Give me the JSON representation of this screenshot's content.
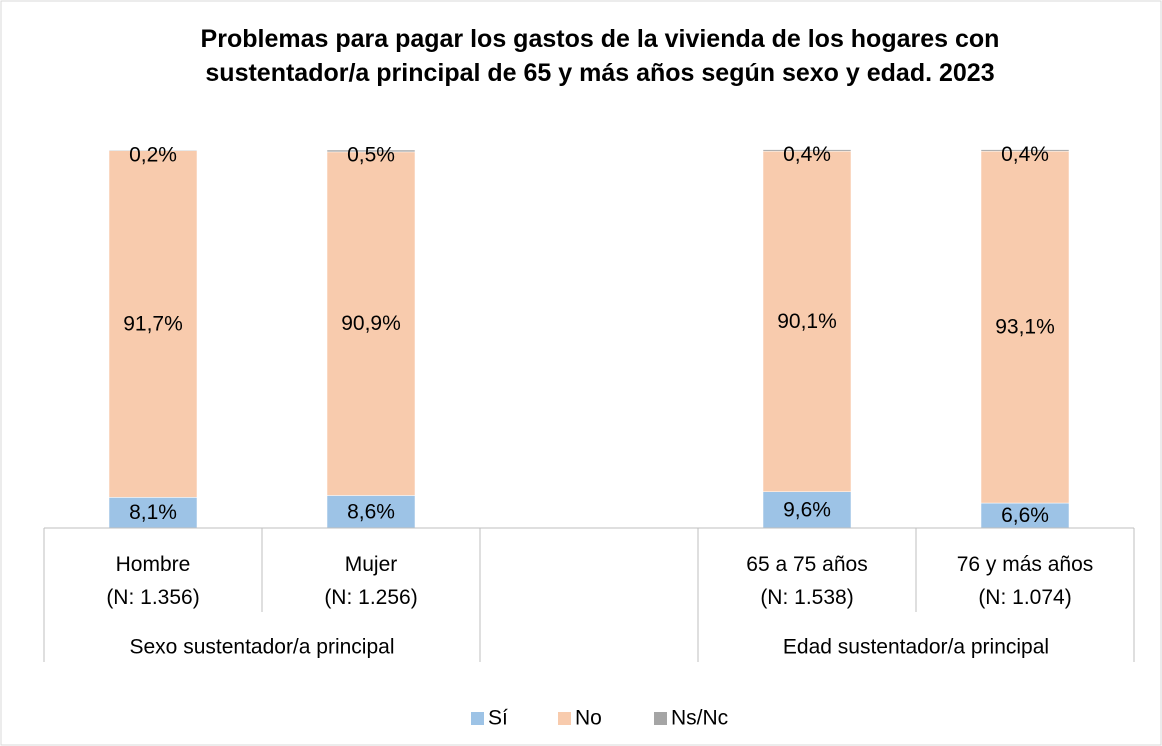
{
  "chart_data": {
    "type": "stacked_bar",
    "title": "Problemas para pagar los gastos de la vivienda de los hogares con sustentador/a principal de 65 y más años según sexo y edad. 2023",
    "categories": [
      "Hombre\n(N: 1.356)",
      "Mujer\n(N: 1.256)",
      null,
      "65 a 75 años\n(N: 1.538)",
      "76 y más años\n(N: 1.074)"
    ],
    "groups": [
      "Sexo sustentador/a principal",
      "Edad sustentador/a principal"
    ],
    "ylim": [
      0,
      100
    ],
    "series": [
      {
        "name": "Sí",
        "color": "#9dc3e6",
        "values": [
          8.1,
          8.6,
          null,
          9.6,
          6.6
        ],
        "value_labels": [
          "8,1%",
          "8,6%",
          null,
          "9,6%",
          "6,6%"
        ]
      },
      {
        "name": "No",
        "color": "#f8cbad",
        "values": [
          91.7,
          90.9,
          null,
          90.1,
          93.1
        ],
        "value_labels": [
          "91,7%",
          "90,9%",
          null,
          "90,1%",
          "93,1%"
        ]
      },
      {
        "name": "Ns/Nc",
        "color": "#a5a5a5",
        "values": [
          0.2,
          0.5,
          null,
          0.4,
          0.4
        ],
        "value_labels": [
          "0,2%",
          "0,5%",
          null,
          "0,4%",
          "0,4%"
        ]
      }
    ],
    "legend": "bottom"
  }
}
